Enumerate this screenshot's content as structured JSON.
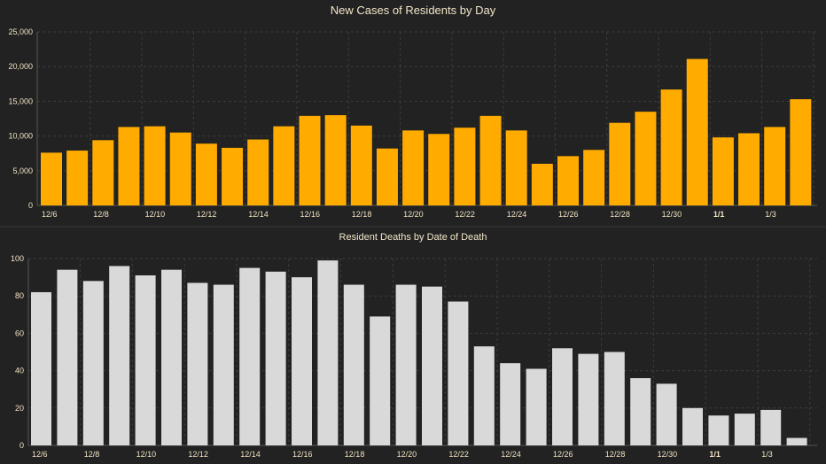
{
  "colors": {
    "background": "#222222",
    "cases_bar": "#ffab00",
    "deaths_bar": "#d9d9d9",
    "text": "#f2e6c9",
    "grid": "#3c3c3c"
  },
  "chart_data": [
    {
      "type": "bar",
      "title": "New Cases of Residents by Day",
      "xlabel": "",
      "ylabel": "",
      "ylim": [
        0,
        25000
      ],
      "yticks": [
        "0",
        "5,000",
        "10,000",
        "15,000",
        "20,000",
        "25,000"
      ],
      "grid": true,
      "categories": [
        "12/6",
        "12/7",
        "12/8",
        "12/9",
        "12/10",
        "12/11",
        "12/12",
        "12/13",
        "12/14",
        "12/15",
        "12/16",
        "12/17",
        "12/18",
        "12/19",
        "12/20",
        "12/21",
        "12/22",
        "12/23",
        "12/24",
        "12/25",
        "12/26",
        "12/27",
        "12/28",
        "12/29",
        "12/30",
        "12/31",
        "1/1",
        "1/2",
        "1/3",
        "1/4"
      ],
      "xtick_labels": [
        "12/6",
        "12/8",
        "12/10",
        "12/12",
        "12/14",
        "12/16",
        "12/18",
        "12/20",
        "12/22",
        "12/24",
        "12/26",
        "12/28",
        "12/30",
        "1/1",
        "1/3"
      ],
      "values": [
        7600,
        7900,
        9400,
        11300,
        11400,
        10500,
        8900,
        8300,
        9500,
        11400,
        12900,
        13000,
        11500,
        8200,
        10800,
        10300,
        11200,
        12900,
        10800,
        6000,
        7100,
        8000,
        11900,
        13500,
        16700,
        21100,
        9800,
        10400,
        11300,
        15300
      ]
    },
    {
      "type": "bar",
      "title": "Resident Deaths by Date of Death",
      "xlabel": "",
      "ylabel": "",
      "ylim": [
        0,
        100
      ],
      "yticks": [
        "0",
        "20",
        "40",
        "60",
        "80",
        "100"
      ],
      "grid": true,
      "categories": [
        "12/6",
        "12/7",
        "12/8",
        "12/9",
        "12/10",
        "12/11",
        "12/12",
        "12/13",
        "12/14",
        "12/15",
        "12/16",
        "12/17",
        "12/18",
        "12/19",
        "12/20",
        "12/21",
        "12/22",
        "12/23",
        "12/24",
        "12/25",
        "12/26",
        "12/27",
        "12/28",
        "12/29",
        "12/30",
        "12/31",
        "1/1",
        "1/2",
        "1/3",
        "1/4"
      ],
      "xtick_labels": [
        "12/6",
        "12/8",
        "12/10",
        "12/12",
        "12/14",
        "12/16",
        "12/18",
        "12/20",
        "12/22",
        "12/24",
        "12/26",
        "12/28",
        "12/30",
        "1/1",
        "1/3"
      ],
      "values": [
        82,
        94,
        88,
        96,
        91,
        94,
        87,
        86,
        95,
        93,
        90,
        99,
        86,
        69,
        86,
        85,
        77,
        53,
        44,
        41,
        52,
        49,
        50,
        36,
        33,
        20,
        16,
        17,
        19,
        4
      ]
    }
  ]
}
